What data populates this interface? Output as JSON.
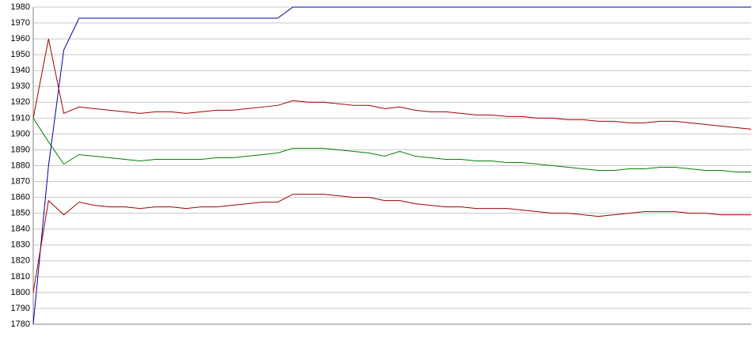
{
  "chart_data": {
    "type": "line",
    "categories": [
      null,
      null,
      null,
      null,
      null,
      null,
      null,
      null,
      null,
      null,
      null,
      null,
      null,
      null,
      null,
      null,
      null,
      null,
      null,
      null,
      null,
      null,
      null,
      null,
      null,
      null,
      null,
      null,
      null,
      null,
      null,
      null,
      null,
      null,
      null,
      null,
      null,
      null,
      null,
      null,
      null,
      null,
      null,
      null,
      null,
      null,
      null,
      null
    ],
    "series": [
      {
        "color": "#0000a0",
        "values": [
          1780,
          1880,
          1953,
          1973,
          1973,
          1973,
          1973,
          1973,
          1973,
          1973,
          1973,
          1973,
          1973,
          1973,
          1973,
          1973,
          1973,
          1980,
          1980,
          1980,
          1980,
          1980,
          1980,
          1980,
          1980,
          1980,
          1980,
          1980,
          1980,
          1980,
          1980,
          1980,
          1980,
          1980,
          1980,
          1980,
          1980,
          1980,
          1980,
          1980,
          1980,
          1980,
          1980,
          1980,
          1980,
          1980,
          1980,
          1980
        ]
      },
      {
        "color": "#a00000",
        "values": [
          1910,
          1960,
          1913,
          1917,
          1916,
          1915,
          1914,
          1913,
          1914,
          1914,
          1913,
          1914,
          1915,
          1915,
          1916,
          1917,
          1918,
          1921,
          1920,
          1920,
          1919,
          1918,
          1918,
          1916,
          1917,
          1915,
          1914,
          1914,
          1913,
          1912,
          1912,
          1911,
          1911,
          1910,
          1910,
          1909,
          1909,
          1908,
          1908,
          1907,
          1907,
          1908,
          1908,
          1907,
          1906,
          1905,
          1904,
          1903
        ]
      },
      {
        "color": "#008000",
        "values": [
          1910,
          1895,
          1881,
          1887,
          1886,
          1885,
          1884,
          1883,
          1884,
          1884,
          1884,
          1884,
          1885,
          1885,
          1886,
          1887,
          1888,
          1891,
          1891,
          1891,
          1890,
          1889,
          1888,
          1886,
          1889,
          1886,
          1885,
          1884,
          1884,
          1883,
          1883,
          1882,
          1882,
          1881,
          1880,
          1879,
          1878,
          1877,
          1877,
          1878,
          1878,
          1879,
          1879,
          1878,
          1877,
          1877,
          1876,
          1876
        ]
      },
      {
        "color": "#a00000",
        "values": [
          1800,
          1858,
          1849,
          1857,
          1855,
          1854,
          1854,
          1853,
          1854,
          1854,
          1853,
          1854,
          1854,
          1855,
          1856,
          1857,
          1857,
          1862,
          1862,
          1862,
          1861,
          1860,
          1860,
          1858,
          1858,
          1856,
          1855,
          1854,
          1854,
          1853,
          1853,
          1853,
          1852,
          1851,
          1850,
          1850,
          1849,
          1848,
          1849,
          1850,
          1851,
          1851,
          1851,
          1850,
          1850,
          1849,
          1849,
          1849
        ]
      }
    ],
    "ylim": [
      1780,
      1980
    ],
    "yticks": [
      1780,
      1790,
      1800,
      1810,
      1820,
      1830,
      1840,
      1850,
      1860,
      1870,
      1880,
      1890,
      1900,
      1910,
      1920,
      1930,
      1940,
      1950,
      1960,
      1970,
      1980
    ],
    "grid": true
  }
}
